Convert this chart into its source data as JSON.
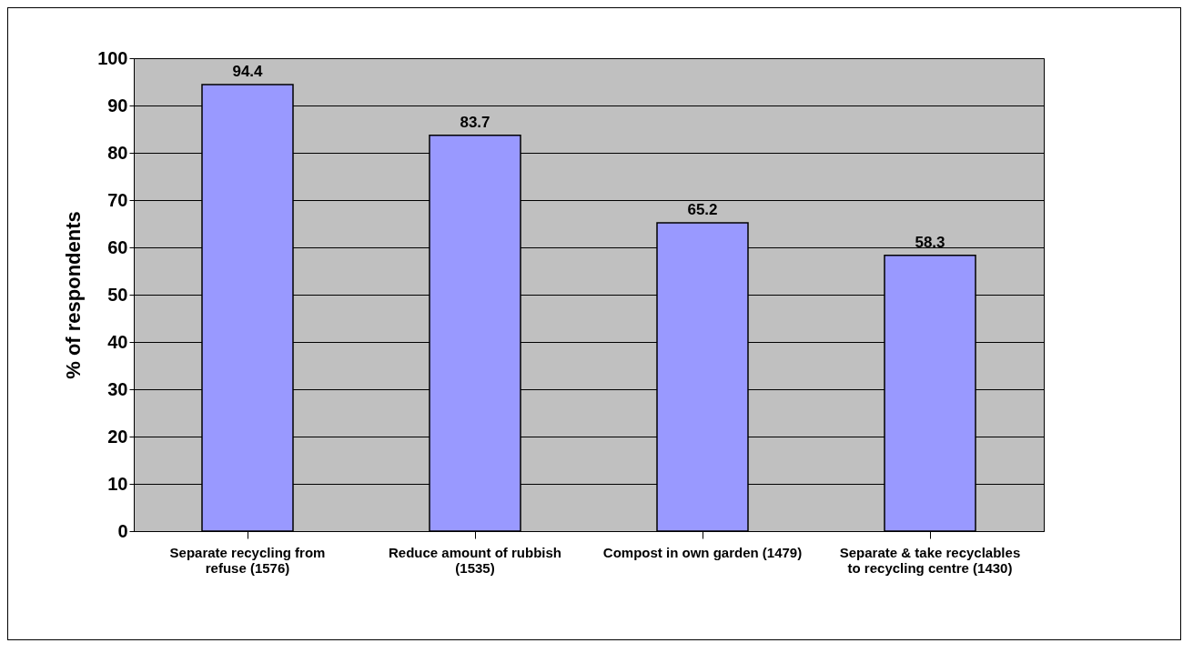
{
  "chart_data": {
    "type": "bar",
    "ylabel": "% of respondents",
    "categories": [
      "Separate recycling from refuse (1576)",
      "Reduce amount of rubbish (1535)",
      "Compost in own garden (1479)",
      "Separate & take recyclables to recycling centre (1430)"
    ],
    "values": [
      94.4,
      83.7,
      65.2,
      58.3
    ],
    "color": "#9999ff",
    "ylim": [
      0,
      100
    ],
    "yticks": [
      0,
      10,
      20,
      30,
      40,
      50,
      60,
      70,
      80,
      90,
      100
    ],
    "grid": "y",
    "data_labels": true
  }
}
